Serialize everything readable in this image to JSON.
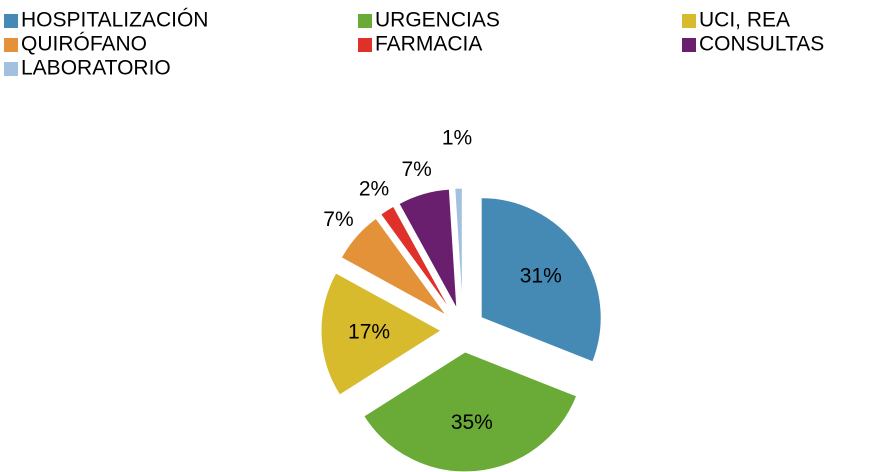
{
  "chart_data": {
    "type": "pie",
    "categories": [
      "HOSPITALIZACIÓN",
      "URGENCIAS",
      "UCI, REA",
      "QUIRÓFANO",
      "FARMACIA",
      "CONSULTAS",
      "LABORATORIO"
    ],
    "values": [
      31,
      35,
      17,
      7,
      2,
      7,
      1
    ],
    "value_labels": [
      "31%",
      "35%",
      "17%",
      "7%",
      "2%",
      "7%",
      "1%"
    ],
    "colors": [
      "#4589b5",
      "#6aaa36",
      "#d8bb2c",
      "#e3923a",
      "#e0302a",
      "#6a1f6e",
      "#a3c0de"
    ],
    "legend": "top"
  }
}
